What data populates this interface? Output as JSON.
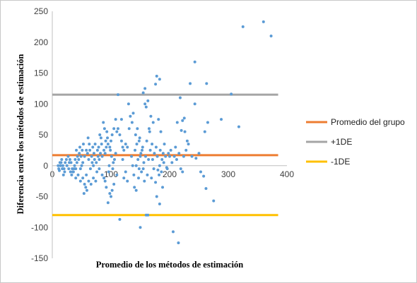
{
  "chart_data": {
    "type": "scatter",
    "xlabel": "Promedio de los métodos de estimación",
    "ylabel": "Diferencia entre los métodos de estimación",
    "xlim": [
      0,
      400
    ],
    "ylim": [
      -150,
      250
    ],
    "xticks": [
      "0",
      "100",
      "200",
      "300",
      "400"
    ],
    "yticks": [
      "-150",
      "-100",
      "-50",
      "0",
      "50",
      "100",
      "150",
      "200",
      "250"
    ],
    "grid": false,
    "legend": "right",
    "point_color": "#5B9BD5",
    "lines": [
      {
        "name": "Promedio del grupo",
        "y": 17,
        "color": "#ED7D31"
      },
      {
        "name": "+1DE",
        "y": 115,
        "color": "#A5A5A5"
      },
      {
        "name": "-1DE",
        "y": -80,
        "color": "#FFC000"
      }
    ],
    "points": [
      [
        325,
        225
      ],
      [
        360,
        233
      ],
      [
        373,
        210
      ],
      [
        243,
        168
      ],
      [
        305,
        116
      ],
      [
        318,
        63
      ],
      [
        288,
        75
      ],
      [
        275,
        -57
      ],
      [
        262,
        -37
      ],
      [
        258,
        -17
      ],
      [
        253,
        -10
      ],
      [
        265,
        70
      ],
      [
        260,
        55
      ],
      [
        263,
        133
      ],
      [
        235,
        133
      ],
      [
        243,
        100
      ],
      [
        225,
        77
      ],
      [
        222,
        73
      ],
      [
        218,
        110
      ],
      [
        213,
        70
      ],
      [
        230,
        40
      ],
      [
        232,
        35
      ],
      [
        226,
        55
      ],
      [
        220,
        57
      ],
      [
        222,
        -10
      ],
      [
        215,
        -125
      ],
      [
        206,
        -107
      ],
      [
        200,
        15
      ],
      [
        195,
        -3
      ],
      [
        190,
        5
      ],
      [
        188,
        -35
      ],
      [
        183,
        0
      ],
      [
        183,
        -62
      ],
      [
        178,
        -50
      ],
      [
        176,
        -27
      ],
      [
        180,
        -7
      ],
      [
        183,
        140
      ],
      [
        178,
        145
      ],
      [
        176,
        132
      ],
      [
        181,
        75
      ],
      [
        185,
        55
      ],
      [
        186,
        -10
      ],
      [
        172,
        70
      ],
      [
        168,
        80
      ],
      [
        165,
        60
      ],
      [
        166,
        55
      ],
      [
        160,
        95
      ],
      [
        163,
        105
      ],
      [
        158,
        100
      ],
      [
        155,
        118
      ],
      [
        158,
        125
      ],
      [
        160,
        -80
      ],
      [
        163,
        -80
      ],
      [
        150,
        -100
      ],
      [
        155,
        -5
      ],
      [
        153,
        25
      ],
      [
        150,
        15
      ],
      [
        148,
        40
      ],
      [
        145,
        60
      ],
      [
        148,
        -5
      ],
      [
        143,
        -40
      ],
      [
        140,
        -35
      ],
      [
        143,
        0
      ],
      [
        138,
        85
      ],
      [
        136,
        70
      ],
      [
        133,
        80
      ],
      [
        130,
        100
      ],
      [
        131,
        60
      ],
      [
        128,
        30
      ],
      [
        125,
        35
      ],
      [
        122,
        25
      ],
      [
        120,
        30
      ],
      [
        118,
        40
      ],
      [
        115,
        50
      ],
      [
        112,
        60
      ],
      [
        110,
        55
      ],
      [
        108,
        75
      ],
      [
        105,
        60
      ],
      [
        102,
        50
      ],
      [
        100,
        40
      ],
      [
        98,
        30
      ],
      [
        95,
        35
      ],
      [
        92,
        30
      ],
      [
        90,
        20
      ],
      [
        88,
        25
      ],
      [
        85,
        15
      ],
      [
        82,
        20
      ],
      [
        80,
        10
      ],
      [
        78,
        15
      ],
      [
        75,
        5
      ],
      [
        72,
        10
      ],
      [
        70,
        0
      ],
      [
        68,
        5
      ],
      [
        65,
        -5
      ],
      [
        62,
        10
      ],
      [
        60,
        20
      ],
      [
        58,
        25
      ],
      [
        55,
        15
      ],
      [
        52,
        5
      ],
      [
        50,
        0
      ],
      [
        48,
        -5
      ],
      [
        45,
        10
      ],
      [
        42,
        5
      ],
      [
        40,
        -5
      ],
      [
        38,
        0
      ],
      [
        35,
        -10
      ],
      [
        32,
        5
      ],
      [
        30,
        10
      ],
      [
        28,
        -5
      ],
      [
        25,
        0
      ],
      [
        22,
        5
      ],
      [
        20,
        -5
      ],
      [
        18,
        0
      ],
      [
        15,
        5
      ],
      [
        12,
        -8
      ],
      [
        10,
        0
      ],
      [
        112,
        115
      ],
      [
        118,
        75
      ],
      [
        115,
        -87
      ],
      [
        120,
        10
      ],
      [
        125,
        -10
      ],
      [
        128,
        -25
      ],
      [
        122,
        -20
      ],
      [
        110,
        -15
      ],
      [
        105,
        -30
      ],
      [
        102,
        -40
      ],
      [
        100,
        -50
      ],
      [
        98,
        -45
      ],
      [
        95,
        -60
      ],
      [
        92,
        -35
      ],
      [
        90,
        -25
      ],
      [
        88,
        -20
      ],
      [
        85,
        -15
      ],
      [
        80,
        -5
      ],
      [
        76,
        -10
      ],
      [
        74,
        -25
      ],
      [
        70,
        -20
      ],
      [
        66,
        -30
      ],
      [
        62,
        -25
      ],
      [
        58,
        -15
      ],
      [
        55,
        -30
      ],
      [
        52,
        -20
      ],
      [
        48,
        -25
      ],
      [
        44,
        -15
      ],
      [
        40,
        -20
      ],
      [
        36,
        -10
      ],
      [
        34,
        -5
      ],
      [
        108,
        20
      ],
      [
        106,
        10
      ],
      [
        104,
        5
      ],
      [
        103,
        -5
      ],
      [
        101,
        15
      ],
      [
        99,
        25
      ],
      [
        97,
        0
      ],
      [
        96,
        -10
      ],
      [
        94,
        45
      ],
      [
        93,
        55
      ],
      [
        91,
        40
      ],
      [
        89,
        60
      ],
      [
        87,
        70
      ],
      [
        84,
        35
      ],
      [
        83,
        45
      ],
      [
        81,
        50
      ],
      [
        79,
        30
      ],
      [
        77,
        25
      ],
      [
        73,
        35
      ],
      [
        71,
        20
      ],
      [
        69,
        30
      ],
      [
        67,
        15
      ],
      [
        64,
        25
      ],
      [
        63,
        35
      ],
      [
        61,
        45
      ],
      [
        59,
        -40
      ],
      [
        57,
        -35
      ],
      [
        54,
        -45
      ],
      [
        53,
        35
      ],
      [
        51,
        25
      ],
      [
        49,
        15
      ],
      [
        47,
        30
      ],
      [
        46,
        20
      ],
      [
        43,
        15
      ],
      [
        41,
        25
      ],
      [
        39,
        10
      ],
      [
        37,
        -5
      ],
      [
        33,
        -15
      ],
      [
        31,
        -10
      ],
      [
        29,
        5
      ],
      [
        27,
        15
      ],
      [
        24,
        10
      ],
      [
        21,
        -10
      ],
      [
        19,
        -15
      ],
      [
        17,
        -5
      ],
      [
        16,
        10
      ],
      [
        14,
        0
      ],
      [
        13,
        5
      ],
      [
        11,
        -5
      ],
      [
        135,
        15
      ],
      [
        137,
        0
      ],
      [
        139,
        -15
      ],
      [
        141,
        25
      ],
      [
        142,
        50
      ],
      [
        144,
        35
      ],
      [
        146,
        10
      ],
      [
        147,
        -20
      ],
      [
        149,
        45
      ],
      [
        151,
        20
      ],
      [
        152,
        -10
      ],
      [
        154,
        30
      ],
      [
        156,
        5
      ],
      [
        157,
        -25
      ],
      [
        159,
        15
      ],
      [
        161,
        40
      ],
      [
        162,
        -15
      ],
      [
        164,
        10
      ],
      [
        167,
        25
      ],
      [
        169,
        -20
      ],
      [
        170,
        35
      ],
      [
        171,
        10
      ],
      [
        173,
        -5
      ],
      [
        174,
        20
      ],
      [
        177,
        30
      ],
      [
        179,
        15
      ],
      [
        182,
        -15
      ],
      [
        184,
        25
      ],
      [
        187,
        10
      ],
      [
        189,
        20
      ],
      [
        191,
        35
      ],
      [
        193,
        15
      ],
      [
        196,
        -5
      ],
      [
        198,
        20
      ],
      [
        202,
        25
      ],
      [
        204,
        5
      ],
      [
        208,
        15
      ],
      [
        210,
        30
      ],
      [
        212,
        10
      ],
      [
        216,
        20
      ],
      [
        219,
        -5
      ],
      [
        224,
        15
      ],
      [
        228,
        25
      ],
      [
        238,
        15
      ],
      [
        245,
        12
      ],
      [
        250,
        20
      ]
    ]
  }
}
